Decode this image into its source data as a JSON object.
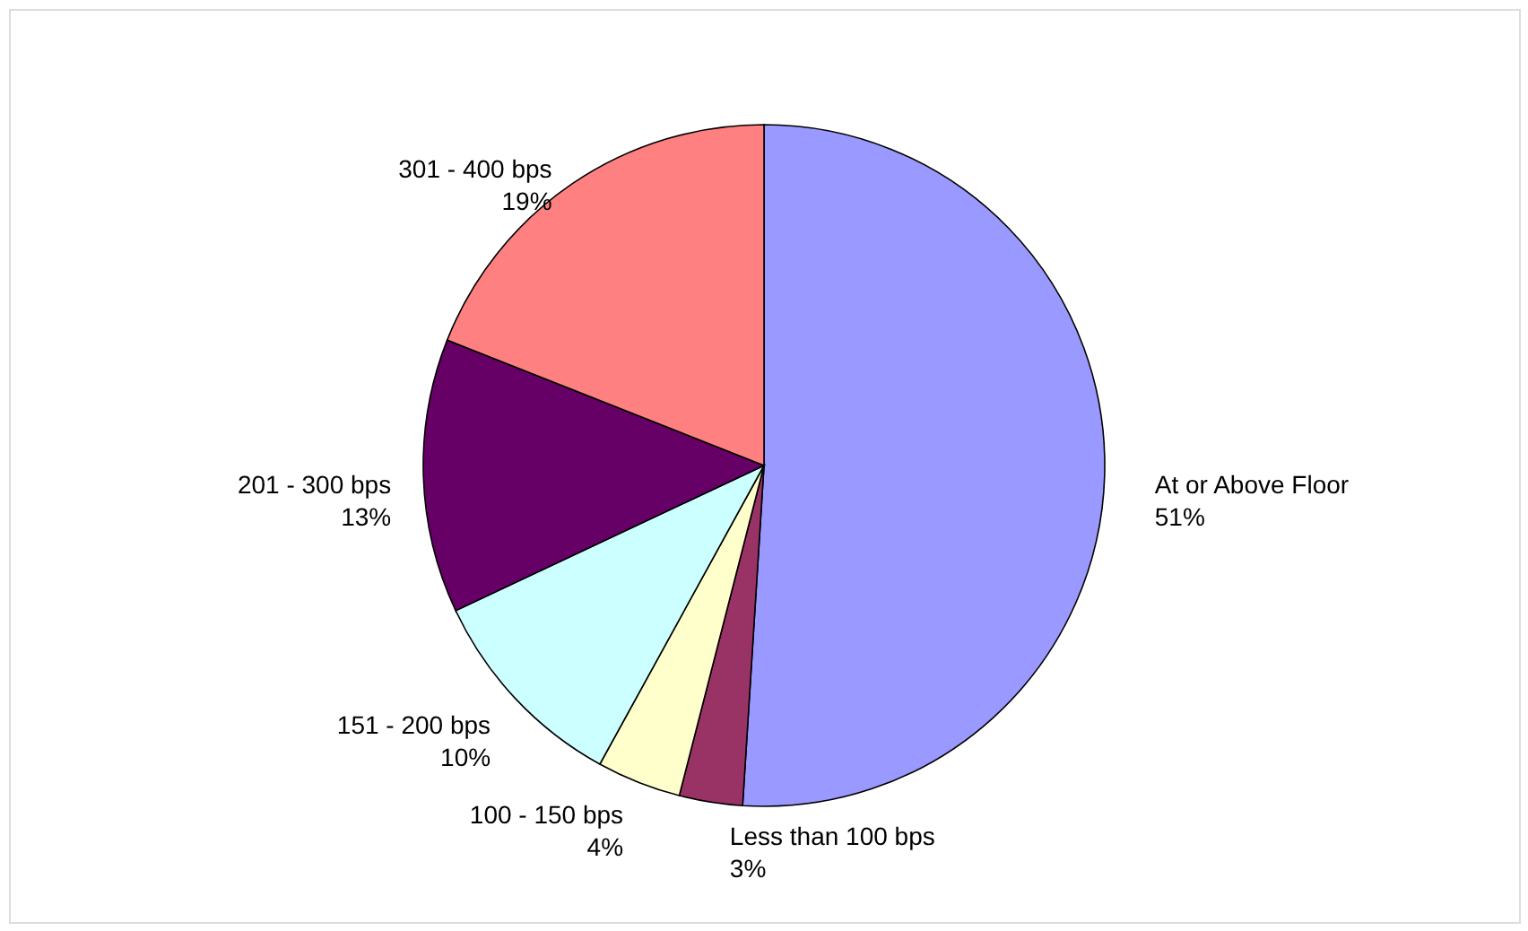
{
  "chart_data": {
    "type": "pie",
    "categories": [
      "At or Above Floor",
      "Less than 100 bps",
      "100 - 150 bps",
      "151 - 200 bps",
      "201 - 300 bps",
      "301 - 400 bps"
    ],
    "values": [
      51,
      3,
      4,
      10,
      13,
      19
    ],
    "value_labels": [
      "51%",
      "3%",
      "4%",
      "10%",
      "13%",
      "19%"
    ],
    "colors": [
      "#9999ff",
      "#993366",
      "#ffffcc",
      "#ccffff",
      "#660066",
      "#ff8080"
    ],
    "legend": false
  }
}
